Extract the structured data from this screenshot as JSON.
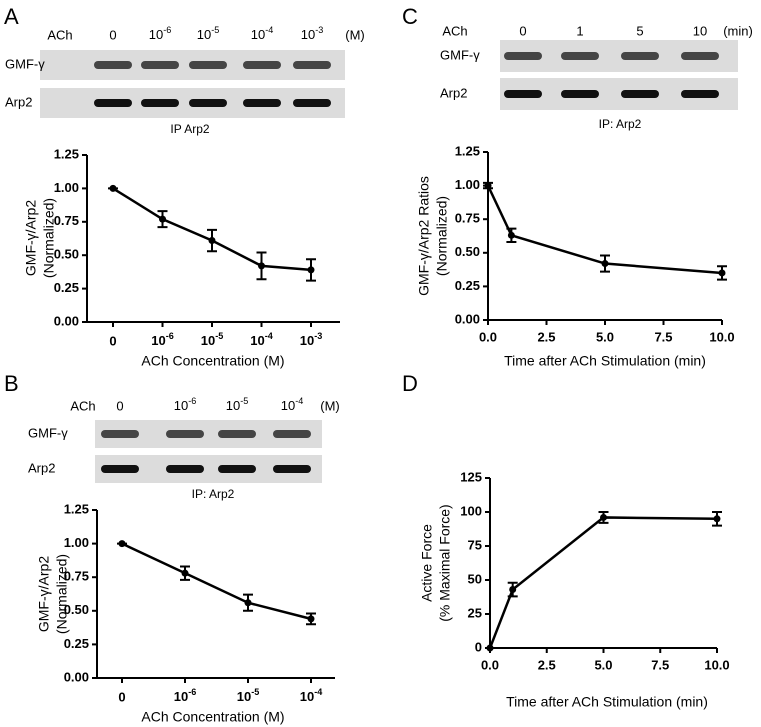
{
  "panels": [
    "A",
    "B",
    "C",
    "D"
  ],
  "blots": [
    {
      "header": "ACh",
      "lanes": [
        "0",
        "10-6",
        "10-5",
        "10-4",
        "10-3"
      ],
      "unit": "(M)",
      "rows": [
        "GMF-γ",
        "Arp2"
      ],
      "caption": "IP Arp2"
    },
    {
      "header": "ACh",
      "lanes": [
        "0",
        "10-6",
        "10-5",
        "10-4"
      ],
      "unit": "(M)",
      "rows": [
        "GMF-γ",
        "Arp2"
      ],
      "caption": "IP: Arp2"
    },
    {
      "header": "ACh",
      "lanes": [
        "0",
        "1",
        "5",
        "10"
      ],
      "unit": "(min)",
      "rows": [
        "GMF-γ",
        "Arp2"
      ],
      "caption": "IP: Arp2"
    }
  ],
  "chart_data": [
    {
      "type": "line",
      "categories": [
        "0",
        "10-6",
        "10-5",
        "10-4",
        "10-3"
      ],
      "values": [
        1.0,
        0.77,
        0.61,
        0.42,
        0.39
      ],
      "errors": [
        0,
        0.06,
        0.08,
        0.1,
        0.08
      ],
      "color": "#000000",
      "ylim": [
        0,
        1.25
      ],
      "yticks": [
        {
          "value": 0,
          "label": "0.00"
        },
        0.25,
        {
          "value": 0.5,
          "label": "0.50"
        },
        0.75,
        {
          "value": 1,
          "label": "1.00"
        },
        1.25
      ],
      "xlabel": "ACh Concentration (M)",
      "ylabel": [
        "GMF-γ/Arp2",
        "(Normalized)"
      ]
    },
    {
      "type": "line",
      "categories": [
        "0",
        "10-6",
        "10-5",
        "10-4"
      ],
      "values": [
        1.0,
        0.78,
        0.56,
        0.44
      ],
      "errors": [
        0,
        0.05,
        0.06,
        0.04
      ],
      "color": "#000000",
      "ylim": [
        0,
        1.25
      ],
      "yticks": [
        {
          "value": 0,
          "label": "0.00"
        },
        0.25,
        {
          "value": 0.5,
          "label": "0.50"
        },
        0.75,
        {
          "value": 1,
          "label": "1.00"
        },
        1.25
      ],
      "xlabel": "ACh Concentration (M)",
      "ylabel": [
        "GMF-γ/Arp2",
        "(Normalized)"
      ]
    },
    {
      "type": "xyline",
      "x": [
        0,
        1,
        5,
        10
      ],
      "values": [
        1.0,
        0.63,
        0.42,
        0.35
      ],
      "errors": [
        0.02,
        0.05,
        0.06,
        0.05
      ],
      "color": "#000000",
      "xlim": [
        0,
        10
      ],
      "xticks": [
        {
          "value": 0,
          "label": "0.0"
        },
        2.5,
        {
          "value": 5,
          "label": "5.0"
        },
        7.5,
        {
          "value": 10,
          "label": "10.0"
        }
      ],
      "ylim": [
        0,
        1.25
      ],
      "yticks": [
        {
          "value": 0,
          "label": "0.00"
        },
        0.25,
        {
          "value": 0.5,
          "label": "0.50"
        },
        0.75,
        {
          "value": 1,
          "label": "1.00"
        },
        1.25
      ],
      "xlabel": "Time after ACh Stimulation (min)",
      "ylabel": [
        "GMF-γ/Arp2 Ratios",
        "(Normalized)"
      ]
    },
    {
      "type": "xyline",
      "x": [
        0,
        1,
        5,
        10
      ],
      "values": [
        0,
        43,
        96,
        95
      ],
      "errors": [
        0,
        5,
        4,
        5
      ],
      "color": "#000000",
      "xlim": [
        0,
        10
      ],
      "xticks": [
        {
          "value": 0,
          "label": "0.0"
        },
        2.5,
        {
          "value": 5,
          "label": "5.0"
        },
        7.5,
        {
          "value": 10,
          "label": "10.0"
        }
      ],
      "ylim": [
        0,
        125
      ],
      "yticks": [
        0,
        25,
        50,
        75,
        100,
        125
      ],
      "xlabel": "Time after ACh Stimulation (min)",
      "ylabel": [
        "Active Force",
        "(% Maximal Force)"
      ]
    }
  ]
}
